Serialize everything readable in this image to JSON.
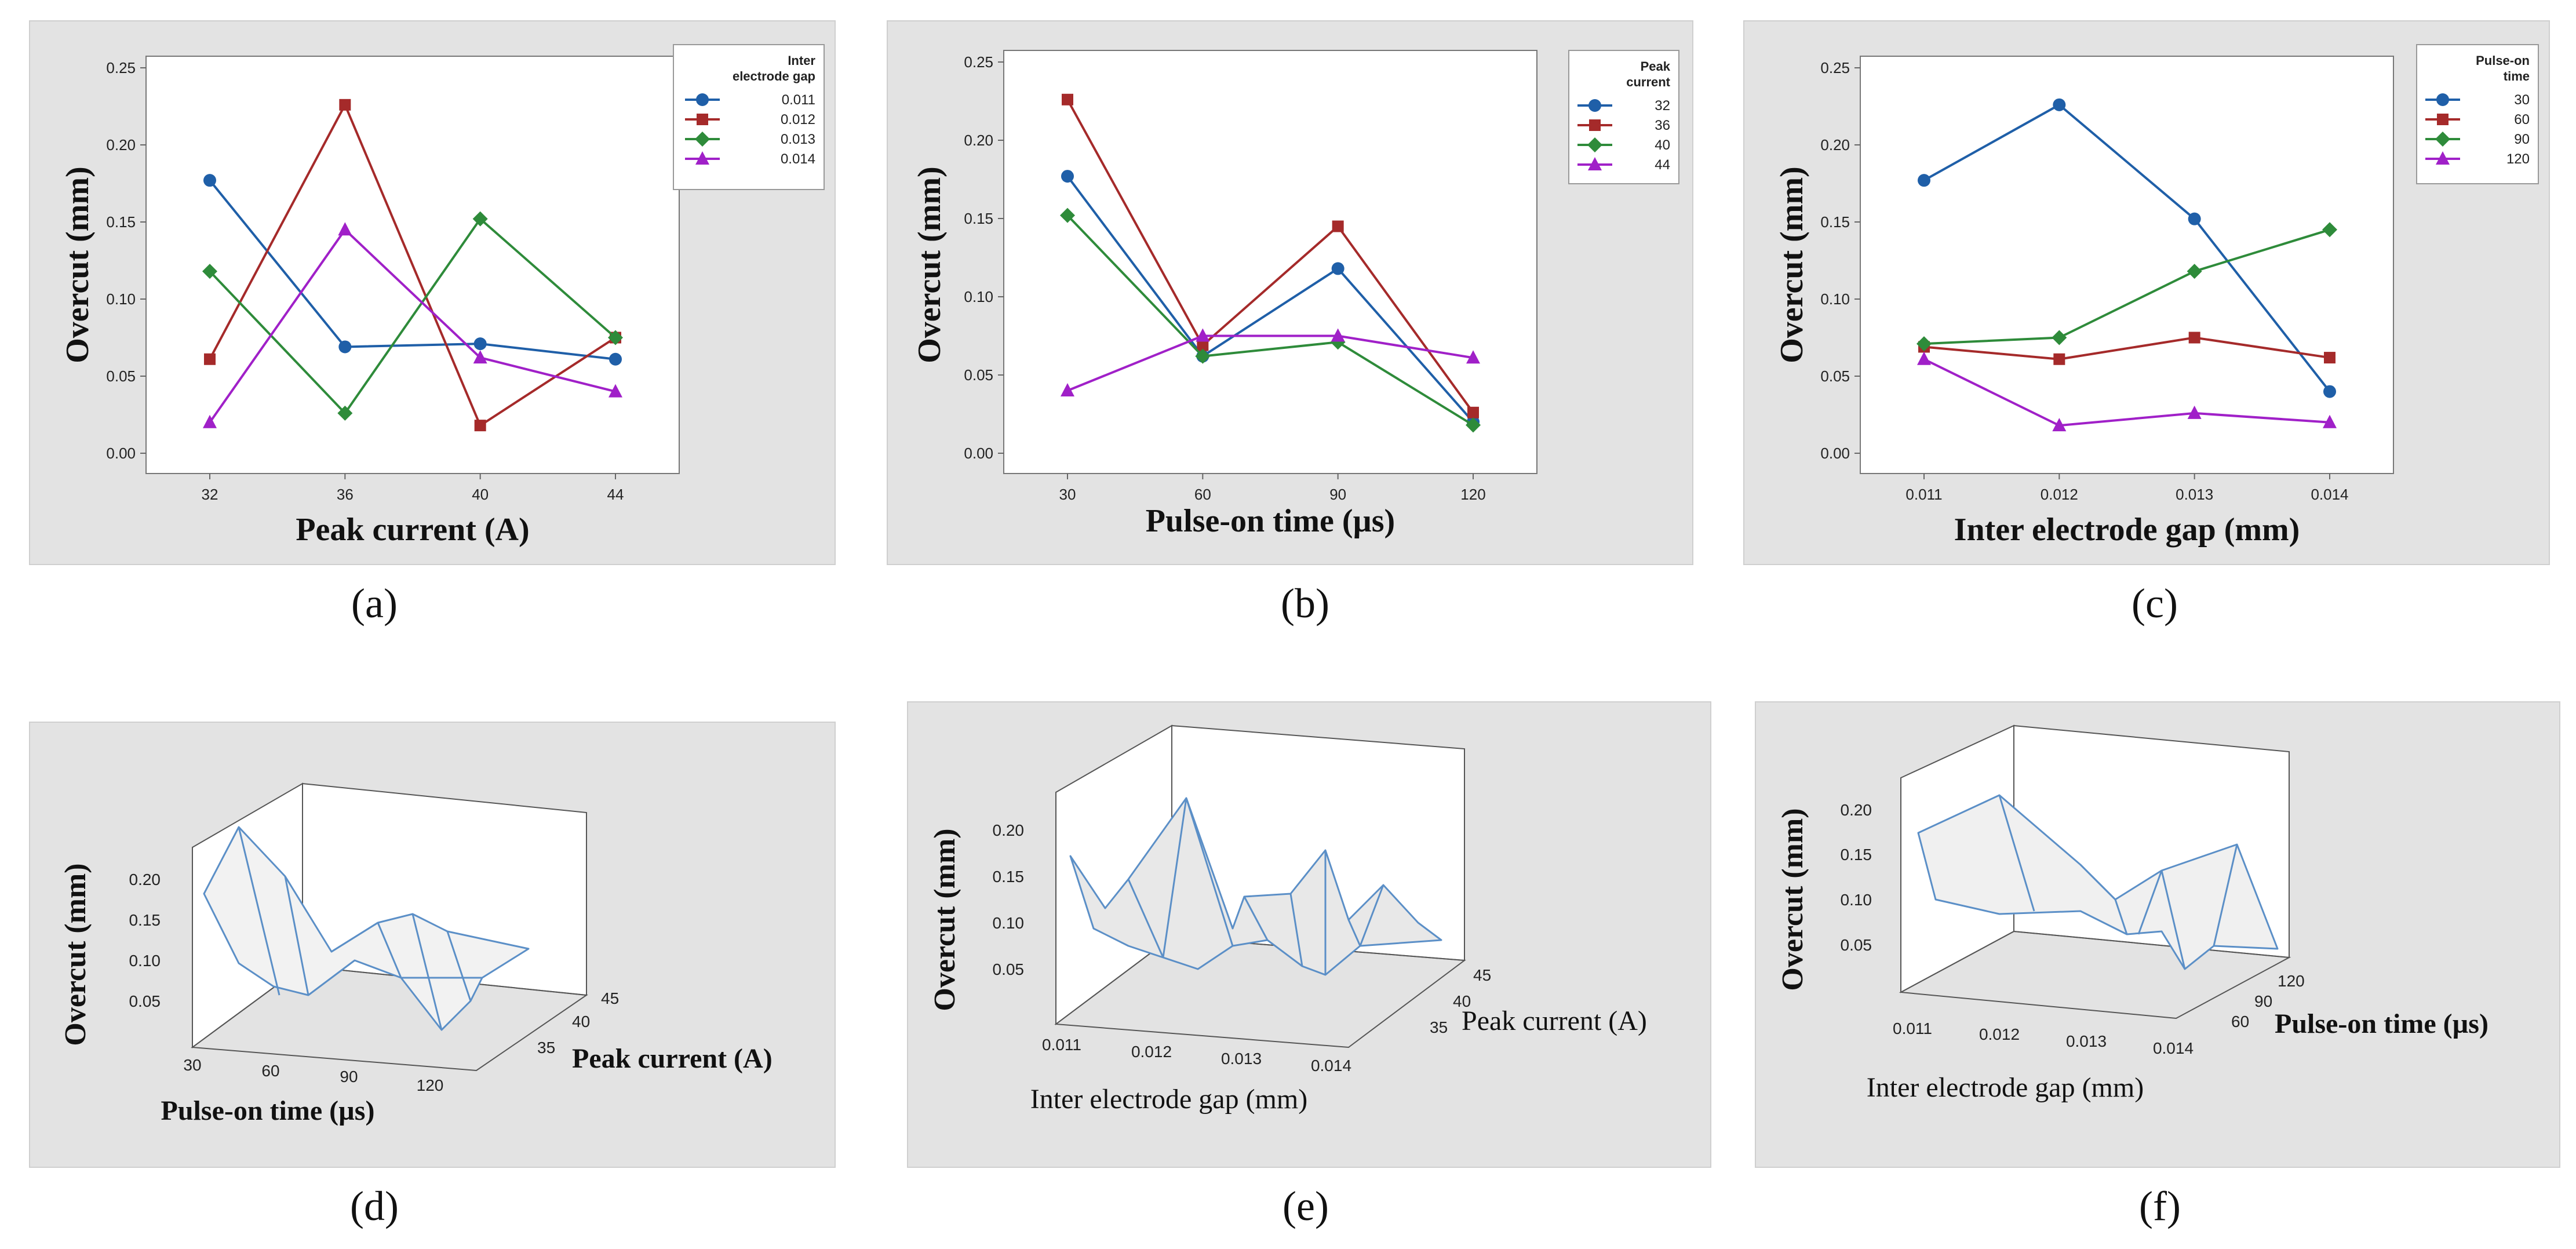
{
  "captions": [
    "(a)",
    "(b)",
    "(c)",
    "(d)",
    "(e)",
    "(f)"
  ],
  "colors": {
    "s1": "#1f5fa8",
    "s2": "#a52a2a",
    "s3": "#2e8b3a",
    "s4": "#a020c8",
    "surface": "#5b8fc7",
    "fill": "#f2f2f2"
  },
  "chart_data": [
    {
      "type": "line",
      "panel": "a",
      "xlabel": "Peak current (A)",
      "ylabel": "Overcut (mm)",
      "categories": [
        "32",
        "36",
        "40",
        "44"
      ],
      "yticks": [
        "0.00",
        "0.05",
        "0.10",
        "0.15",
        "0.20",
        "0.25"
      ],
      "ylim": [
        0,
        0.25
      ],
      "legend_title": [
        "Inter",
        "electrode gap"
      ],
      "series": [
        {
          "name": "0.011",
          "marker": "circle",
          "values": [
            0.177,
            0.069,
            0.071,
            0.061
          ]
        },
        {
          "name": "0.012",
          "marker": "square",
          "values": [
            0.061,
            0.226,
            0.018,
            0.075
          ]
        },
        {
          "name": "0.013",
          "marker": "diamond",
          "values": [
            0.118,
            0.026,
            0.152,
            0.075
          ]
        },
        {
          "name": "0.014",
          "marker": "triangle",
          "values": [
            0.02,
            0.145,
            0.062,
            0.04
          ]
        }
      ]
    },
    {
      "type": "line",
      "panel": "b",
      "xlabel": "Pulse-on time (µs)",
      "ylabel": "Overcut (mm)",
      "categories": [
        "30",
        "60",
        "90",
        "120"
      ],
      "yticks": [
        "0.00",
        "0.05",
        "0.10",
        "0.15",
        "0.20",
        "0.25"
      ],
      "ylim": [
        0,
        0.25
      ],
      "legend_title": [
        "Peak",
        "current"
      ],
      "series": [
        {
          "name": "32",
          "marker": "circle",
          "values": [
            0.177,
            0.062,
            0.118,
            0.02
          ]
        },
        {
          "name": "36",
          "marker": "square",
          "values": [
            0.226,
            0.069,
            0.145,
            0.026
          ]
        },
        {
          "name": "40",
          "marker": "diamond",
          "values": [
            0.152,
            0.062,
            0.071,
            0.018
          ]
        },
        {
          "name": "44",
          "marker": "triangle",
          "values": [
            0.04,
            0.075,
            0.075,
            0.061
          ]
        }
      ]
    },
    {
      "type": "line",
      "panel": "c",
      "xlabel": "Inter electrode gap (mm)",
      "ylabel": "Overcut (mm)",
      "categories": [
        "0.011",
        "0.012",
        "0.013",
        "0.014"
      ],
      "yticks": [
        "0.00",
        "0.05",
        "0.10",
        "0.15",
        "0.20",
        "0.25"
      ],
      "ylim": [
        0,
        0.25
      ],
      "legend_title": [
        "Pulse-on",
        "time"
      ],
      "series": [
        {
          "name": "30",
          "marker": "circle",
          "values": [
            0.177,
            0.226,
            0.152,
            0.04
          ]
        },
        {
          "name": "60",
          "marker": "square",
          "values": [
            0.069,
            0.061,
            0.075,
            0.062
          ]
        },
        {
          "name": "90",
          "marker": "diamond",
          "values": [
            0.071,
            0.075,
            0.118,
            0.145
          ]
        },
        {
          "name": "120",
          "marker": "triangle",
          "values": [
            0.061,
            0.018,
            0.026,
            0.02
          ]
        }
      ]
    },
    {
      "type": "surface",
      "panel": "d",
      "zlabel": "Overcut (mm)",
      "xlabel": "Pulse-on time (µs)",
      "ylabel": "Peak current (A)",
      "zticks": [
        "0.05",
        "0.10",
        "0.15",
        "0.20"
      ],
      "xticks": [
        "30",
        "60",
        "90",
        "120"
      ],
      "yticks": [
        "35",
        "40",
        "45"
      ]
    },
    {
      "type": "surface",
      "panel": "e",
      "zlabel": "Overcut (mm)",
      "xlabel": "Inter electrode gap (mm)",
      "ylabel": "Peak current (A)",
      "zticks": [
        "0.05",
        "0.10",
        "0.15",
        "0.20"
      ],
      "xticks": [
        "0.011",
        "0.012",
        "0.013",
        "0.014"
      ],
      "yticks": [
        "35",
        "40",
        "45"
      ]
    },
    {
      "type": "surface",
      "panel": "f",
      "zlabel": "Overcut (mm)",
      "xlabel": "Inter electrode gap (mm)",
      "ylabel": "Pulse-on time (µs)",
      "zticks": [
        "0.05",
        "0.10",
        "0.15",
        "0.20"
      ],
      "xticks": [
        "0.011",
        "0.012",
        "0.013",
        "0.014"
      ],
      "yticks": [
        "60",
        "90",
        "120"
      ]
    }
  ]
}
